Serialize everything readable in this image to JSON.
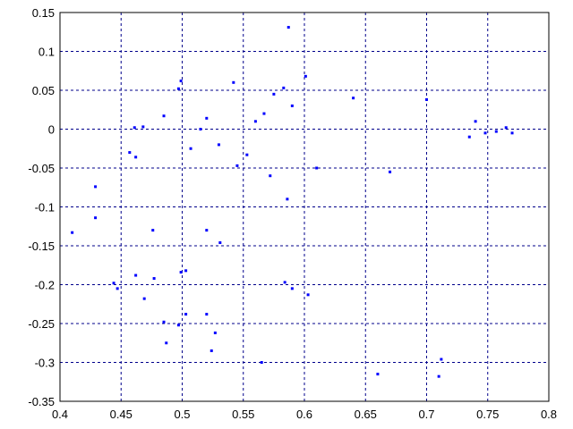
{
  "chart_data": {
    "type": "scatter",
    "title": "",
    "xlabel": "",
    "ylabel": "",
    "xlim": [
      0.4,
      0.8
    ],
    "ylim": [
      -0.35,
      0.15
    ],
    "grid": true,
    "x_ticks": [
      "0.4",
      "0.45",
      "0.5",
      "0.55",
      "0.6",
      "0.65",
      "0.7",
      "0.75",
      "0.8"
    ],
    "y_ticks": [
      "0.15",
      "0.1",
      "0.05",
      "0",
      "-0.05",
      "-0.1",
      "-0.15",
      "-0.2",
      "-0.25",
      "-0.3",
      "-0.35"
    ],
    "marker_color": "#0000ff",
    "grid_color": "#00008b",
    "series": [
      {
        "name": "",
        "points": [
          [
            0.587,
            0.131
          ],
          [
            0.601,
            0.068
          ],
          [
            0.499,
            0.062
          ],
          [
            0.497,
            0.052
          ],
          [
            0.542,
            0.06
          ],
          [
            0.583,
            0.053
          ],
          [
            0.468,
            0.003
          ],
          [
            0.461,
            0.002
          ],
          [
            0.457,
            -0.03
          ],
          [
            0.462,
            -0.036
          ],
          [
            0.485,
            0.017
          ],
          [
            0.507,
            -0.025
          ],
          [
            0.52,
            0.014
          ],
          [
            0.53,
            -0.02
          ],
          [
            0.515,
            0.0
          ],
          [
            0.545,
            -0.047
          ],
          [
            0.553,
            -0.033
          ],
          [
            0.567,
            0.02
          ],
          [
            0.572,
            -0.06
          ],
          [
            0.586,
            -0.09
          ],
          [
            0.429,
            -0.074
          ],
          [
            0.429,
            -0.114
          ],
          [
            0.41,
            -0.133
          ],
          [
            0.476,
            -0.13
          ],
          [
            0.52,
            -0.13
          ],
          [
            0.531,
            -0.146
          ],
          [
            0.444,
            -0.198
          ],
          [
            0.447,
            -0.205
          ],
          [
            0.462,
            -0.188
          ],
          [
            0.477,
            -0.192
          ],
          [
            0.499,
            -0.184
          ],
          [
            0.503,
            -0.182
          ],
          [
            0.469,
            -0.218
          ],
          [
            0.485,
            -0.248
          ],
          [
            0.487,
            -0.275
          ],
          [
            0.497,
            -0.252
          ],
          [
            0.503,
            -0.238
          ],
          [
            0.52,
            -0.238
          ],
          [
            0.527,
            -0.262
          ],
          [
            0.524,
            -0.285
          ],
          [
            0.565,
            -0.3
          ],
          [
            0.584,
            -0.197
          ],
          [
            0.59,
            -0.205
          ],
          [
            0.603,
            -0.213
          ],
          [
            0.712,
            -0.296
          ],
          [
            0.71,
            -0.318
          ],
          [
            0.66,
            -0.315
          ],
          [
            0.765,
            0.002
          ],
          [
            0.77,
            -0.005
          ],
          [
            0.757,
            -0.003
          ],
          [
            0.748,
            -0.005
          ],
          [
            0.74,
            0.01
          ],
          [
            0.735,
            -0.01
          ],
          [
            0.67,
            -0.055
          ],
          [
            0.7,
            0.038
          ],
          [
            0.61,
            -0.05
          ],
          [
            0.64,
            0.04
          ],
          [
            0.56,
            0.01
          ],
          [
            0.59,
            0.03
          ],
          [
            0.575,
            0.045
          ]
        ]
      }
    ]
  }
}
